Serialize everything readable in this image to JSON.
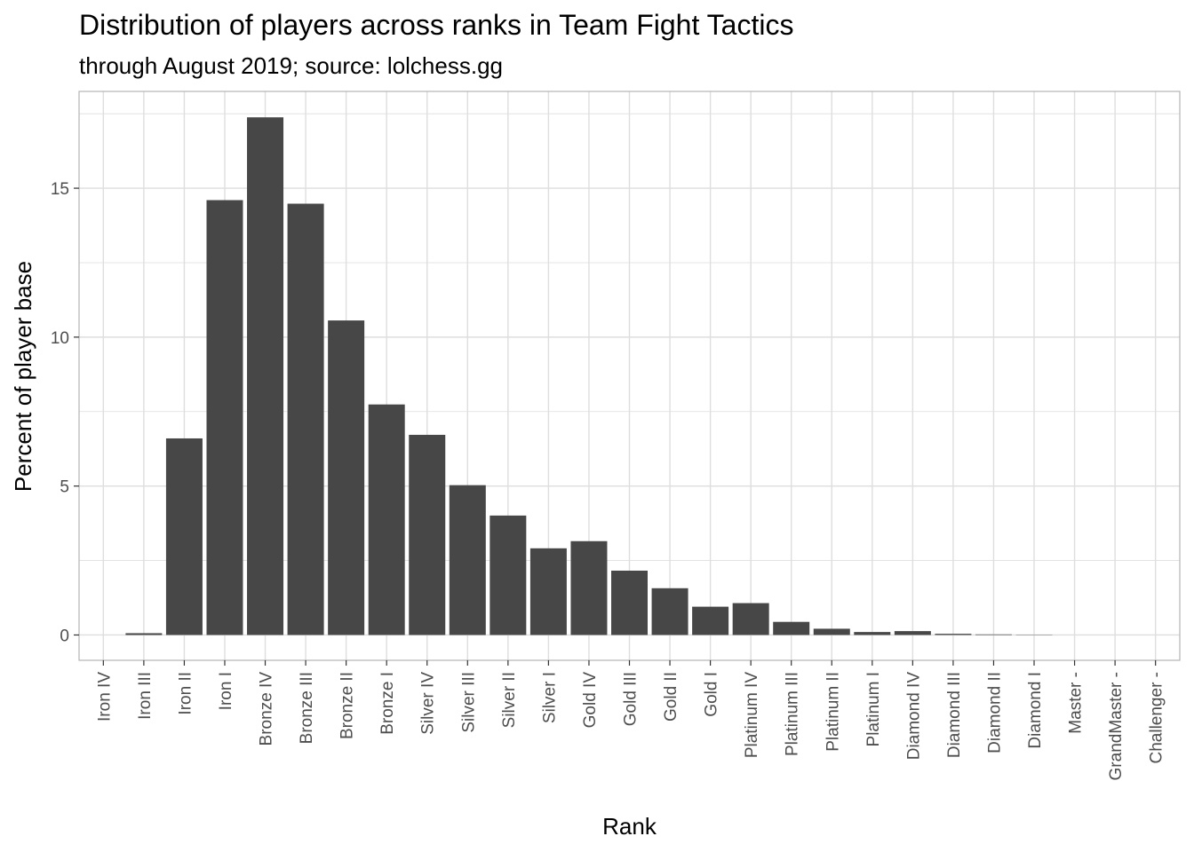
{
  "chart_data": {
    "type": "bar",
    "title": "Distribution of players across ranks in Team Fight Tactics",
    "subtitle": "through August 2019; source: lolchess.gg",
    "xlabel": "Rank",
    "ylabel": "Percent of player base",
    "categories": [
      "Iron IV",
      "Iron III",
      "Iron II",
      "Iron I",
      "Bronze IV",
      "Bronze III",
      "Bronze II",
      "Bronze I",
      "Silver IV",
      "Silver III",
      "Silver II",
      "Silver I",
      "Gold IV",
      "Gold III",
      "Gold II",
      "Gold I",
      "Platinum IV",
      "Platinum III",
      "Platinum II",
      "Platinum I",
      "Diamond IV",
      "Diamond III",
      "Diamond II",
      "Diamond I",
      "Master -",
      "GrandMaster -",
      "Challenger -"
    ],
    "values": [
      0.0,
      0.06,
      6.6,
      14.6,
      17.38,
      14.48,
      10.56,
      7.74,
      6.72,
      5.03,
      4.01,
      2.91,
      3.15,
      2.16,
      1.57,
      0.95,
      1.07,
      0.44,
      0.21,
      0.1,
      0.13,
      0.04,
      0.02,
      0.01,
      0.0,
      0.0,
      0.0
    ],
    "ylim": [
      -0.85,
      18.25
    ],
    "yticks": [
      0,
      5,
      10,
      15
    ],
    "grid": true,
    "bar_color": "#474747",
    "grid_color": "#dedede",
    "panel_border_color": "#b3b3b3"
  }
}
